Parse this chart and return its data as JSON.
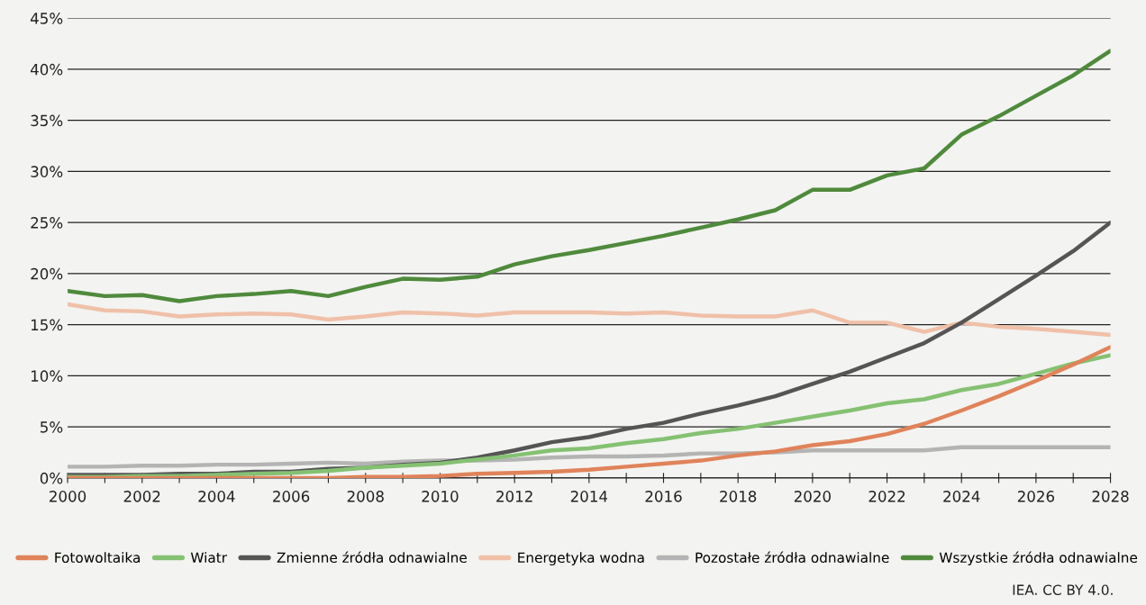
{
  "chart_data": {
    "type": "line",
    "x": [
      2000,
      2001,
      2002,
      2003,
      2004,
      2005,
      2006,
      2007,
      2008,
      2009,
      2010,
      2011,
      2012,
      2013,
      2014,
      2015,
      2016,
      2017,
      2018,
      2019,
      2020,
      2021,
      2022,
      2023,
      2024,
      2025,
      2026,
      2027,
      2028
    ],
    "series": [
      {
        "name": "Fotowoltaika",
        "color": "#e0835a",
        "values": [
          0,
          0,
          0,
          0,
          0,
          0,
          0,
          0,
          0.1,
          0.1,
          0.2,
          0.4,
          0.5,
          0.6,
          0.8,
          1.1,
          1.4,
          1.7,
          2.2,
          2.6,
          3.2,
          3.6,
          4.3,
          5.3,
          6.6,
          8.0,
          9.5,
          11.1,
          12.8
        ]
      },
      {
        "name": "Wiatr",
        "color": "#85c172",
        "values": [
          0.1,
          0.1,
          0.2,
          0.2,
          0.3,
          0.4,
          0.5,
          0.7,
          1.0,
          1.2,
          1.4,
          1.8,
          2.2,
          2.7,
          2.9,
          3.4,
          3.8,
          4.4,
          4.8,
          5.4,
          6.0,
          6.6,
          7.3,
          7.7,
          8.6,
          9.2,
          10.2,
          11.2,
          12.0
        ]
      },
      {
        "name": "Zmienne źródła odnawialne",
        "color": "#555555",
        "values": [
          0.3,
          0.3,
          0.3,
          0.4,
          0.4,
          0.6,
          0.6,
          0.9,
          1.0,
          1.3,
          1.5,
          2.0,
          2.7,
          3.5,
          4.0,
          4.8,
          5.4,
          6.3,
          7.1,
          8.0,
          9.2,
          10.4,
          11.8,
          13.2,
          15.2,
          17.5,
          19.8,
          22.2,
          25.0
        ]
      },
      {
        "name": "Energetyka wodna",
        "color": "#f0c0a8",
        "values": [
          17.0,
          16.4,
          16.3,
          15.8,
          16.0,
          16.1,
          16.0,
          15.5,
          15.8,
          16.2,
          16.1,
          15.9,
          16.2,
          16.2,
          16.2,
          16.1,
          16.2,
          15.9,
          15.8,
          15.8,
          16.4,
          15.2,
          15.2,
          14.3,
          15.2,
          14.8,
          14.6,
          14.3,
          14.0
        ]
      },
      {
        "name": "Pozostałe źródła odnawialne",
        "color": "#b4b4b4",
        "values": [
          1.1,
          1.1,
          1.2,
          1.2,
          1.3,
          1.3,
          1.4,
          1.5,
          1.4,
          1.6,
          1.7,
          1.7,
          1.8,
          2.0,
          2.1,
          2.1,
          2.2,
          2.4,
          2.4,
          2.5,
          2.7,
          2.7,
          2.7,
          2.7,
          3.0,
          3.0,
          3.0,
          3.0,
          3.0
        ]
      },
      {
        "name": "Wszystkie źródła odnawialne",
        "color": "#4f8a3c",
        "values": [
          18.3,
          17.8,
          17.9,
          17.3,
          17.8,
          18.0,
          18.3,
          17.8,
          18.7,
          19.5,
          19.4,
          19.7,
          20.9,
          21.7,
          22.3,
          23.0,
          23.7,
          24.5,
          25.3,
          26.2,
          28.2,
          28.2,
          29.6,
          30.3,
          33.6,
          35.4,
          37.4,
          39.4,
          41.8
        ]
      }
    ],
    "xlim": [
      2000,
      2028
    ],
    "xticks": [
      2000,
      {
        "value": 2001,
        "label": null
      },
      2002,
      {
        "value": 2003,
        "label": null
      },
      2004,
      {
        "value": 2005,
        "label": null
      },
      2006,
      {
        "value": 2007,
        "label": null
      },
      2008,
      {
        "value": 2009,
        "label": null
      },
      2010,
      {
        "value": 2011,
        "label": null
      },
      2012,
      {
        "value": 2013,
        "label": null
      },
      2014,
      {
        "value": 2015,
        "label": null
      },
      2016,
      {
        "value": 2017,
        "label": null
      },
      2018,
      {
        "value": 2019,
        "label": null
      },
      2020,
      {
        "value": 2021,
        "label": null
      },
      2022,
      {
        "value": 2023,
        "label": null
      },
      2024,
      {
        "value": 2025,
        "label": null
      },
      2026,
      {
        "value": 2027,
        "label": null
      },
      2028
    ],
    "ylim": [
      0,
      45
    ],
    "yticks": [
      {
        "value": 0,
        "label": "0%"
      },
      {
        "value": 5,
        "label": "5%"
      },
      {
        "value": 10,
        "label": "10%"
      },
      {
        "value": 15,
        "label": "15%"
      },
      {
        "value": 20,
        "label": "20%"
      },
      {
        "value": 25,
        "label": "25%"
      },
      {
        "value": 30,
        "label": "30%"
      },
      {
        "value": 35,
        "label": "35%"
      },
      {
        "value": 40,
        "label": "40%"
      },
      {
        "value": 45,
        "label": "45%"
      }
    ],
    "grid": "y",
    "legend": "bottom",
    "marker": "none",
    "line_style": "solid",
    "annotations": [
      "IEA. CC BY 4.0."
    ]
  }
}
